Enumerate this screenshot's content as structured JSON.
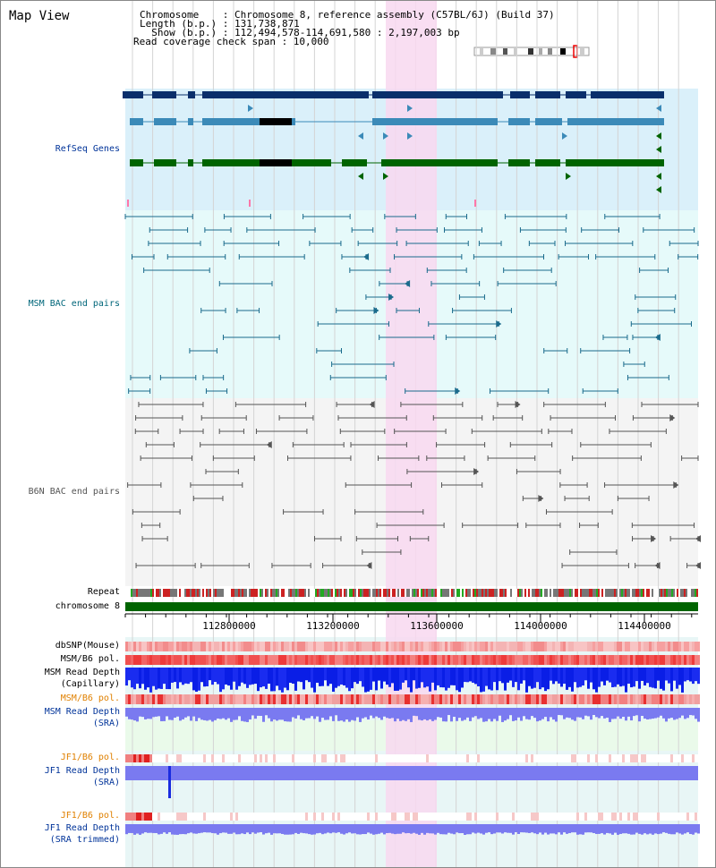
{
  "title": "Map View",
  "header": {
    "line1": "Chromosome    : Chromosome 8, reference assembly (C57BL/6J) (Build 37)",
    "line2": "Length (b.p.) : 131,738,871",
    "line3": "  Show (b.p.) : 112,494,578-114,691,580 : 2,197,003 bp",
    "line4": "Read coverage check span : 10,000"
  },
  "tracks": {
    "refseq": "RefSeq Genes",
    "msm_bac": "MSM BAC end pairs",
    "b6n_bac": "B6N BAC end pairs",
    "repeat": "Repeat",
    "chromosome": "chromosome 8",
    "dbsnp": "dbSNP(Mouse)",
    "msm_b6_pol_1": "MSM/B6 pol.",
    "msm_depth_cap_1": "MSM Read Depth",
    "msm_depth_cap_2": "(Capillary)",
    "msm_b6_pol_2": "MSM/B6 pol.",
    "msm_depth_sra_1": "MSM Read Depth",
    "msm_depth_sra_2": "(SRA)",
    "jf1_b6_pol_1": "JF1/B6 pol.",
    "jf1_depth_sra_1": "JF1 Read Depth",
    "jf1_depth_sra_2": "(SRA)",
    "jf1_b6_pol_2": "JF1/B6 pol.",
    "jf1_depth_trim_1": "JF1 Read Depth",
    "jf1_depth_trim_2": "(SRA trimmed)"
  },
  "axis": {
    "ticks": [
      "112800000",
      "113200000",
      "113600000",
      "114000000",
      "114400000"
    ]
  },
  "colors": {
    "refseq_dark": "#0a2f6b",
    "refseq_mid": "#3b8ab8",
    "refseq_green": "#006400",
    "refseq_bg": "#daf0fa",
    "msm_bg": "#e6fafa",
    "msm_line": "#1a6b8c",
    "b6n_bg": "#f4f4f4",
    "b6n_line": "#555555",
    "highlight": "#f8d8f0",
    "chrom_bar": "#006400",
    "label_blue": "#003399",
    "label_teal": "#00667a",
    "label_orange": "#e08000"
  }
}
